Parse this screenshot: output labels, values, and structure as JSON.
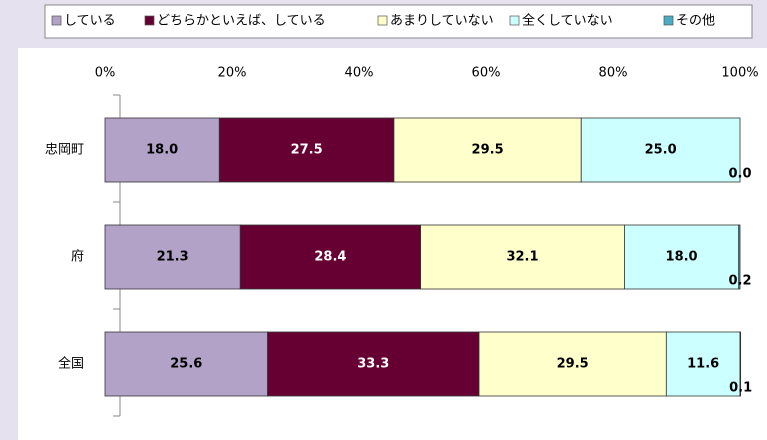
{
  "chart_data": {
    "type": "stacked_bar_horizontal",
    "categories": [
      "忠岡町",
      "府",
      "全国"
    ],
    "series": [
      {
        "name": "している",
        "color": "#b3a2c7",
        "values": [
          18.0,
          21.3,
          25.6
        ],
        "value_labels": [
          "18.0",
          "21.3",
          "25.6"
        ]
      },
      {
        "name": "どちらかといえば、している",
        "color": "#660033",
        "values": [
          27.5,
          28.4,
          33.3
        ],
        "value_labels": [
          "27.5",
          "28.4",
          "33.3"
        ]
      },
      {
        "name": "あまりしていない",
        "color": "#ffffcc",
        "values": [
          29.5,
          32.1,
          29.5
        ],
        "value_labels": [
          "29.5",
          "32.1",
          "29.5"
        ]
      },
      {
        "name": "全くしていない",
        "color": "#ccffff",
        "values": [
          25.0,
          18.0,
          11.6
        ],
        "value_labels": [
          "25.0",
          "18.0",
          "11.6"
        ]
      },
      {
        "name": "その他",
        "color": "#4bacc6",
        "values": [
          0.0,
          0.2,
          0.1
        ],
        "value_labels": [
          "0.0",
          "0.2",
          "0.1"
        ]
      }
    ],
    "xlim": [
      0,
      100
    ],
    "xticks": [
      {
        "value": 0,
        "label": "0%"
      },
      {
        "value": 20,
        "label": "20%"
      },
      {
        "value": 40,
        "label": "40%"
      },
      {
        "value": 60,
        "label": "60%"
      },
      {
        "value": 80,
        "label": "80%"
      },
      {
        "value": 100,
        "label": "100%"
      }
    ],
    "legend": "top"
  }
}
